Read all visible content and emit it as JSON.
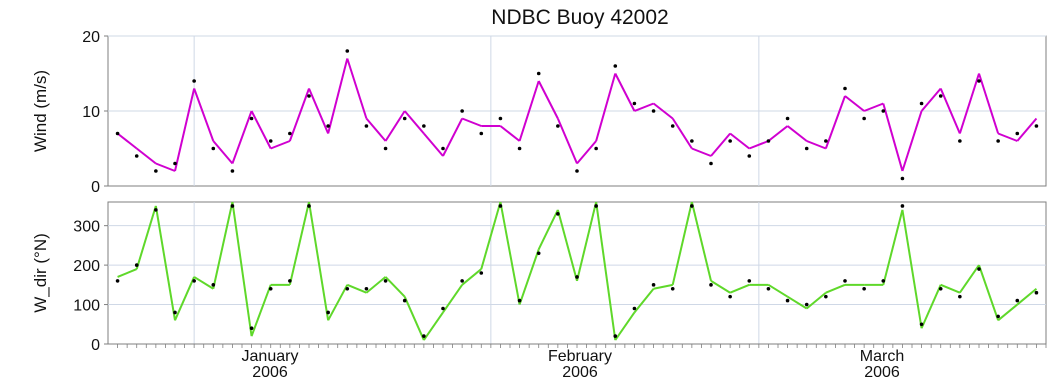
{
  "chart_data": [
    {
      "type": "line",
      "title": "NDBC Buoy 42002",
      "ylabel": "Wind (m/s)",
      "xlabel": "",
      "ylim": [
        0,
        20
      ],
      "yticks": [
        0,
        10,
        20
      ],
      "grid": true,
      "x_ticks": [
        {
          "label": "January",
          "year": "2006"
        },
        {
          "label": "February",
          "year": "2006"
        },
        {
          "label": "March",
          "year": "2006"
        }
      ],
      "x": [
        "2005-12-24",
        "2005-12-26",
        "2005-12-28",
        "2005-12-30",
        "2006-01-01",
        "2006-01-03",
        "2006-01-05",
        "2006-01-07",
        "2006-01-09",
        "2006-01-11",
        "2006-01-13",
        "2006-01-15",
        "2006-01-17",
        "2006-01-19",
        "2006-01-21",
        "2006-01-23",
        "2006-01-25",
        "2006-01-27",
        "2006-01-29",
        "2006-01-31",
        "2006-02-02",
        "2006-02-04",
        "2006-02-06",
        "2006-02-08",
        "2006-02-10",
        "2006-02-12",
        "2006-02-14",
        "2006-02-16",
        "2006-02-18",
        "2006-02-20",
        "2006-02-22",
        "2006-02-24",
        "2006-02-26",
        "2006-02-28",
        "2006-03-02",
        "2006-03-04",
        "2006-03-06",
        "2006-03-08",
        "2006-03-10",
        "2006-03-12",
        "2006-03-14",
        "2006-03-16",
        "2006-03-18",
        "2006-03-20",
        "2006-03-22",
        "2006-03-24",
        "2006-03-26",
        "2006-03-28",
        "2006-03-30"
      ],
      "series": [
        {
          "color": "#d000d0",
          "style": "line",
          "values": [
            7,
            5,
            3,
            2,
            13,
            6,
            3,
            10,
            5,
            6,
            13,
            7,
            17,
            9,
            6,
            10,
            7,
            4,
            9,
            8,
            8,
            6,
            14,
            9,
            3,
            6,
            15,
            10,
            11,
            9,
            5,
            4,
            7,
            5,
            6,
            8,
            6,
            5,
            12,
            10,
            11,
            2,
            10,
            13,
            7,
            15,
            7,
            6,
            9
          ]
        },
        {
          "color": "#000000",
          "style": "dots",
          "values": [
            7,
            4,
            2,
            3,
            14,
            5,
            2,
            9,
            6,
            7,
            12,
            8,
            18,
            8,
            5,
            9,
            8,
            5,
            10,
            7,
            9,
            5,
            15,
            8,
            2,
            5,
            16,
            11,
            10,
            8,
            6,
            3,
            6,
            4,
            6,
            9,
            5,
            6,
            13,
            9,
            10,
            1,
            11,
            12,
            6,
            14,
            6,
            7,
            8
          ]
        }
      ]
    },
    {
      "type": "line",
      "title": "",
      "ylabel": "W_dir (°N)",
      "xlabel": "",
      "ylim": [
        0,
        360
      ],
      "yticks": [
        0,
        100,
        200,
        300
      ],
      "grid": true,
      "x": [
        "2005-12-24",
        "2005-12-26",
        "2005-12-28",
        "2005-12-30",
        "2006-01-01",
        "2006-01-03",
        "2006-01-05",
        "2006-01-07",
        "2006-01-09",
        "2006-01-11",
        "2006-01-13",
        "2006-01-15",
        "2006-01-17",
        "2006-01-19",
        "2006-01-21",
        "2006-01-23",
        "2006-01-25",
        "2006-01-27",
        "2006-01-29",
        "2006-01-31",
        "2006-02-02",
        "2006-02-04",
        "2006-02-06",
        "2006-02-08",
        "2006-02-10",
        "2006-02-12",
        "2006-02-14",
        "2006-02-16",
        "2006-02-18",
        "2006-02-20",
        "2006-02-22",
        "2006-02-24",
        "2006-02-26",
        "2006-02-28",
        "2006-03-02",
        "2006-03-04",
        "2006-03-06",
        "2006-03-08",
        "2006-03-10",
        "2006-03-12",
        "2006-03-14",
        "2006-03-16",
        "2006-03-18",
        "2006-03-20",
        "2006-03-22",
        "2006-03-24",
        "2006-03-26",
        "2006-03-28",
        "2006-03-30"
      ],
      "series": [
        {
          "color": "#5fd82a",
          "style": "line",
          "values": [
            170,
            190,
            350,
            60,
            170,
            140,
            360,
            20,
            150,
            150,
            360,
            60,
            150,
            130,
            170,
            120,
            10,
            80,
            150,
            190,
            360,
            100,
            240,
            340,
            160,
            360,
            10,
            80,
            140,
            150,
            360,
            160,
            130,
            150,
            150,
            120,
            90,
            130,
            150,
            150,
            150,
            340,
            40,
            150,
            130,
            200,
            60,
            100,
            140
          ]
        },
        {
          "color": "#000000",
          "style": "dots",
          "values": [
            160,
            200,
            340,
            80,
            160,
            150,
            350,
            40,
            140,
            160,
            350,
            80,
            140,
            140,
            160,
            110,
            20,
            90,
            160,
            180,
            350,
            110,
            230,
            330,
            170,
            350,
            20,
            90,
            150,
            140,
            350,
            150,
            120,
            160,
            140,
            110,
            100,
            120,
            160,
            140,
            160,
            350,
            50,
            140,
            120,
            190,
            70,
            110,
            130
          ]
        }
      ]
    }
  ]
}
